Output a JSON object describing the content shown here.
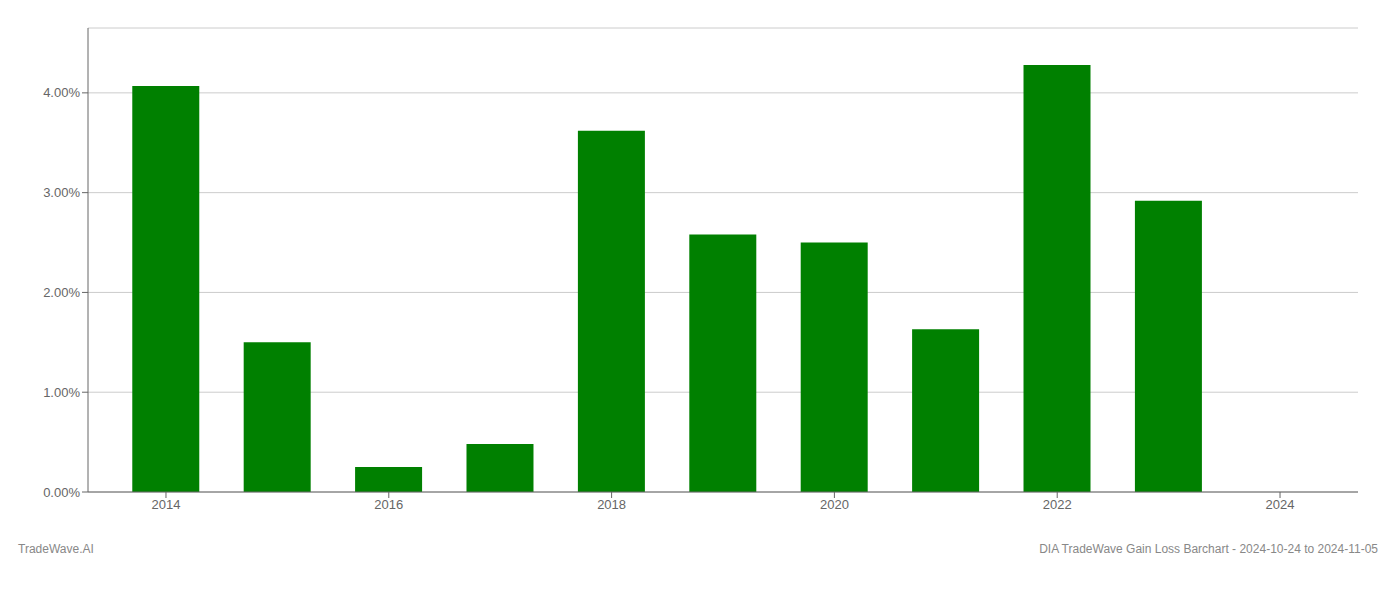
{
  "chart_data": {
    "type": "bar",
    "x": [
      2014,
      2015,
      2016,
      2017,
      2018,
      2019,
      2020,
      2021,
      2022,
      2023
    ],
    "values": [
      4.07,
      1.5,
      0.25,
      0.48,
      3.62,
      2.58,
      2.5,
      1.63,
      4.28,
      2.92
    ],
    "color": "#008000",
    "xlim": [
      2013.3,
      2024.7
    ],
    "xticks": [
      2014,
      2016,
      2018,
      2020,
      2022,
      2024
    ],
    "ylim": [
      0,
      4.65
    ],
    "yticks": [
      {
        "value": 0.0,
        "label": "0.00%"
      },
      {
        "value": 1.0,
        "label": "1.00%"
      },
      {
        "value": 2.0,
        "label": "2.00%"
      },
      {
        "value": 3.0,
        "label": "3.00%"
      },
      {
        "value": 4.0,
        "label": "4.00%"
      }
    ],
    "grid": true,
    "annotations": [
      "TradeWave.AI",
      "DIA TradeWave Gain Loss Barchart - 2024-10-24 to 2024-11-05"
    ]
  }
}
